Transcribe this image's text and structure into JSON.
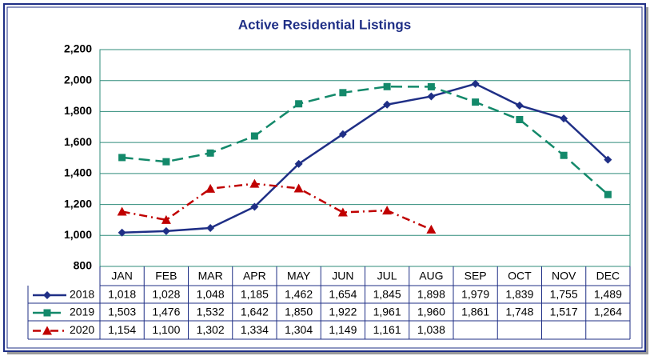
{
  "chart_data": {
    "type": "line",
    "title": "Active Residential Listings",
    "categories": [
      "JAN",
      "FEB",
      "MAR",
      "APR",
      "MAY",
      "JUN",
      "JUL",
      "AUG",
      "SEP",
      "OCT",
      "NOV",
      "DEC"
    ],
    "ylim": [
      800,
      2200
    ],
    "yticks": [
      800,
      {
        "value": 1000,
        "label": "1,000"
      },
      {
        "value": 1200,
        "label": "1,200"
      },
      {
        "value": 1400,
        "label": "1,400"
      },
      {
        "value": 1600,
        "label": "1,600"
      },
      {
        "value": 1800,
        "label": "1,800"
      },
      {
        "value": 2000,
        "label": "2,000"
      },
      {
        "value": 2200,
        "label": "2,200"
      }
    ],
    "grid": true,
    "series": [
      {
        "name": "2018",
        "color": "#1f2f86",
        "marker": "diamond",
        "dash": "solid",
        "values": [
          1018,
          1028,
          1048,
          1185,
          1462,
          1654,
          1845,
          1898,
          1979,
          1839,
          1755,
          1489
        ],
        "value_labels": [
          "1,018",
          "1,028",
          "1,048",
          "1,185",
          "1,462",
          "1,654",
          "1,845",
          "1,898",
          "1,979",
          "1,839",
          "1,755",
          "1,489"
        ]
      },
      {
        "name": "2019",
        "color": "#13896a",
        "marker": "square",
        "dash": "dashed",
        "values": [
          1503,
          1476,
          1532,
          1642,
          1850,
          1922,
          1961,
          1960,
          1861,
          1748,
          1517,
          1264
        ],
        "value_labels": [
          "1,503",
          "1,476",
          "1,532",
          "1,642",
          "1,850",
          "1,922",
          "1,961",
          "1,960",
          "1,861",
          "1,748",
          "1,517",
          "1,264"
        ]
      },
      {
        "name": "2020",
        "color": "#c00000",
        "marker": "triangle",
        "dash": "dashdot",
        "values": [
          1154,
          1100,
          1302,
          1334,
          1304,
          1149,
          1161,
          1038,
          null,
          null,
          null,
          null
        ],
        "value_labels": [
          "1,154",
          "1,100",
          "1,302",
          "1,334",
          "1,304",
          "1,149",
          "1,161",
          "1,038",
          null,
          null,
          null,
          null
        ]
      }
    ]
  }
}
